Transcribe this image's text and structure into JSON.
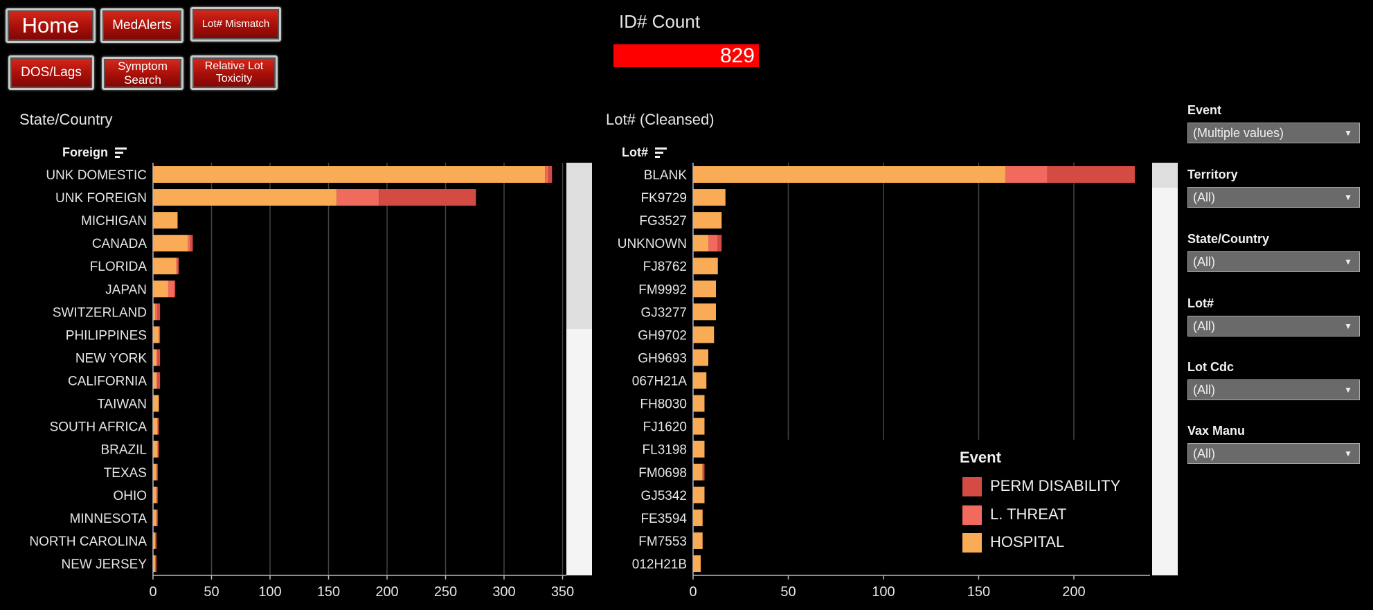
{
  "nav": [
    {
      "label": "Home",
      "size": "big"
    },
    {
      "label": "MedAlerts",
      "size": "mid"
    },
    {
      "label": "Lot# Mismatch",
      "size": "small"
    },
    {
      "label": "DOS/Lags",
      "size": "mid"
    },
    {
      "label": "Symptom Search",
      "size": "mid"
    },
    {
      "label": "Relative Lot Toxicity",
      "size": "mid"
    }
  ],
  "kpi": {
    "title": "ID# Count",
    "value": "829"
  },
  "left_panel": {
    "title": "State/Country",
    "header": "Foreign"
  },
  "right_panel": {
    "title": "Lot# (Cleansed)",
    "header": "Lot#"
  },
  "colors": {
    "PERM DISABILITY": "#d44b43",
    "L. THREAT": "#f06a5e",
    "HOSPITAL": "#f9ab55",
    "kpi": "#ff0000"
  },
  "legend": {
    "title": "Event",
    "items": [
      "PERM DISABILITY",
      "L. THREAT",
      "HOSPITAL"
    ]
  },
  "filters": [
    {
      "label": "Event",
      "value": "(Multiple values)"
    },
    {
      "label": "Territory",
      "value": "(All)"
    },
    {
      "label": "State/Country",
      "value": "(All)"
    },
    {
      "label": "Lot#",
      "value": "(All)"
    },
    {
      "label": "Lot Cdc",
      "value": "(All)"
    },
    {
      "label": "Vax Manu",
      "value": "(All)"
    }
  ],
  "chart_data": [
    {
      "type": "bar",
      "orientation": "horizontal",
      "stacked": true,
      "title": "State/Country",
      "categories": [
        "UNK DOMESTIC",
        "UNK FOREIGN",
        "MICHIGAN",
        "CANADA",
        "FLORIDA",
        "JAPAN",
        "SWITZERLAND",
        "PHILIPPINES",
        "NEW YORK",
        "CALIFORNIA",
        "TAIWAN",
        "SOUTH AFRICA",
        "BRAZIL",
        "TEXAS",
        "OHIO",
        "MINNESOTA",
        "NORTH CAROLINA",
        "NEW JERSEY"
      ],
      "series": [
        {
          "name": "HOSPITAL",
          "values": [
            335,
            157,
            21,
            30,
            20,
            13,
            2,
            5,
            3,
            3,
            5,
            4,
            4,
            3,
            3,
            3,
            2,
            2
          ]
        },
        {
          "name": "L. THREAT",
          "values": [
            3,
            36,
            0,
            2,
            1,
            5,
            2,
            0,
            1,
            1,
            0,
            0,
            0,
            0,
            0,
            0,
            0,
            0
          ]
        },
        {
          "name": "PERM DISABILITY",
          "values": [
            3,
            83,
            0,
            2,
            1,
            1,
            2,
            1,
            2,
            2,
            0,
            1,
            1,
            1,
            1,
            1,
            1,
            1
          ]
        }
      ],
      "xlim": [
        0,
        350
      ],
      "xticks": [
        0,
        50,
        100,
        150,
        200,
        250,
        300,
        350
      ],
      "grid": true
    },
    {
      "type": "bar",
      "orientation": "horizontal",
      "stacked": true,
      "title": "Lot# (Cleansed)",
      "categories": [
        "BLANK",
        "FK9729",
        "FG3527",
        "UNKNOWN",
        "FJ8762",
        "FM9992",
        "GJ3277",
        "GH9702",
        "GH9693",
        "067H21A",
        "FH8030",
        "FJ1620",
        "FL3198",
        "FM0698",
        "GJ5342",
        "FE3594",
        "FM7553",
        "012H21B"
      ],
      "series": [
        {
          "name": "HOSPITAL",
          "values": [
            164,
            17,
            15,
            8,
            13,
            12,
            12,
            11,
            8,
            7,
            6,
            6,
            6,
            5,
            6,
            5,
            5,
            4
          ]
        },
        {
          "name": "L. THREAT",
          "values": [
            22,
            0,
            0,
            5,
            0,
            0,
            0,
            0,
            0,
            0,
            0,
            0,
            0,
            0,
            0,
            0,
            0,
            0
          ]
        },
        {
          "name": "PERM DISABILITY",
          "values": [
            46,
            0,
            0,
            2,
            0,
            0,
            0,
            0,
            0,
            0,
            0,
            0,
            0,
            1,
            0,
            0,
            0,
            0
          ]
        }
      ],
      "xlim": [
        0,
        235
      ],
      "xticks": [
        0,
        50,
        100,
        150,
        200
      ],
      "grid": true
    }
  ]
}
